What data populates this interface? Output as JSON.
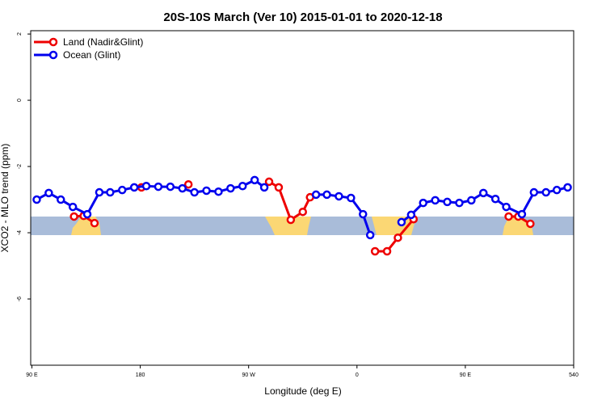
{
  "chart_data": {
    "type": "line",
    "title": "20S-10S March (Ver 10)   2015-01-01 to 2020-12-18",
    "xlabel": "Longitude (deg E)",
    "ylabel": "XCO2 - MLO trend (ppm)",
    "xlim": [
      89,
      540
    ],
    "ylim": [
      -8,
      2.1
    ],
    "xticks": [
      {
        "value": 90,
        "label": "90 E"
      },
      180,
      {
        "value": 270,
        "label": "90 W"
      },
      {
        "value": 360,
        "label": "0"
      },
      {
        "value": 450,
        "label": "90 E"
      },
      540
    ],
    "yticks": [
      2,
      0,
      -2,
      -4,
      -6
    ],
    "legend": "top-left",
    "series": [
      {
        "name": "Land (Nadir&Glint)",
        "color": "#ee0000",
        "x": [
          125,
          133,
          142,
          160,
          181,
          200,
          220,
          260,
          287,
          295,
          305,
          315,
          321,
          350,
          375,
          385,
          394,
          407,
          450,
          486,
          494,
          504
        ],
        "values": [
          -3.51,
          -3.49,
          -3.71,
          null,
          -2.63,
          null,
          -2.54,
          null,
          -2.46,
          -2.63,
          -3.61,
          -3.37,
          -2.93,
          null,
          -4.56,
          -4.56,
          -4.15,
          -3.59,
          null,
          -3.51,
          -3.51,
          -3.73
        ]
      },
      {
        "name": "Ocean (Glint)",
        "color": "#0000ee",
        "x": [
          94,
          104,
          114,
          124,
          136,
          146,
          155,
          165,
          175,
          185,
          195,
          205,
          215,
          225,
          235,
          245,
          255,
          265,
          275,
          283,
          300,
          326,
          335,
          345,
          355,
          365,
          371,
          385,
          397,
          405,
          415,
          425,
          435,
          445,
          455,
          465,
          475,
          484,
          497,
          507,
          517,
          526,
          535
        ],
        "values": [
          -3.0,
          -2.8,
          -3.0,
          -3.22,
          -3.44,
          -2.78,
          -2.78,
          -2.71,
          -2.63,
          -2.59,
          -2.61,
          -2.61,
          -2.66,
          -2.78,
          -2.73,
          -2.76,
          -2.66,
          -2.59,
          -2.41,
          -2.63,
          null,
          -2.85,
          -2.85,
          -2.9,
          -2.95,
          -3.44,
          -4.07,
          null,
          -3.68,
          -3.46,
          -3.1,
          -3.02,
          -3.07,
          -3.1,
          -3.02,
          -2.8,
          -2.98,
          -3.22,
          -3.44,
          -2.78,
          -2.78,
          -2.71,
          -2.63
        ]
      }
    ]
  }
}
